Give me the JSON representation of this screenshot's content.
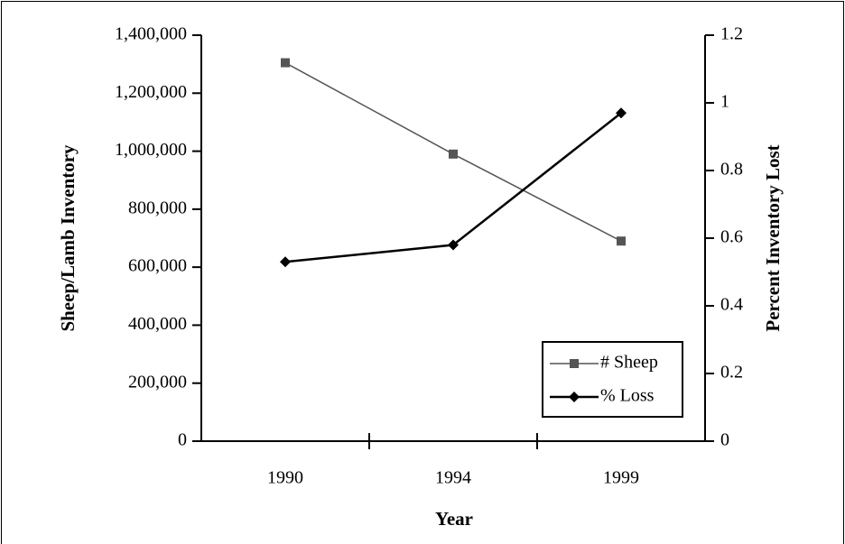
{
  "chart_data": {
    "type": "line",
    "x_label": "Year",
    "y_label": "Sheep/Lamb Inventory",
    "y2_label": "Percent Inventory Lost",
    "categories": [
      "1990",
      "1994",
      "1999"
    ],
    "series": [
      {
        "name": "# Sheep",
        "color": "#555555",
        "marker": "square",
        "values": [
          1305000,
          990000,
          690000
        ]
      },
      {
        "name": "% Loss",
        "color": "#000000",
        "marker": "diamond",
        "axis": "y2",
        "values": [
          0.53,
          0.58,
          0.97
        ]
      }
    ],
    "ylim": [
      0,
      1400000
    ],
    "yticks": [
      0,
      {
        "value": 200000,
        "label": "200,000"
      },
      {
        "value": 400000,
        "label": "400,000"
      },
      {
        "value": 600000,
        "label": "600,000"
      },
      {
        "value": 800000,
        "label": "800,000"
      },
      {
        "value": 1000000,
        "label": "1,000,000"
      },
      {
        "value": 1200000,
        "label": "1,200,000"
      },
      {
        "value": 1400000,
        "label": "1,400,000"
      }
    ],
    "y2lim": [
      0,
      1.2
    ],
    "y2ticks": [
      0,
      0.2,
      0.4,
      0.6,
      0.8,
      1,
      1.2
    ],
    "legend": "lower right"
  }
}
